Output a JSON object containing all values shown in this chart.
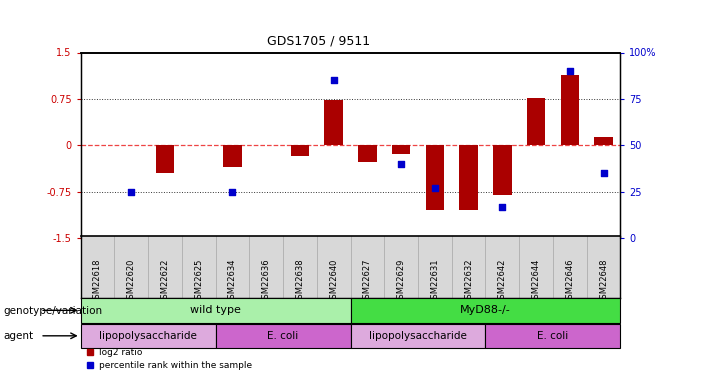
{
  "title": "GDS1705 / 9511",
  "samples": [
    "GSM22618",
    "GSM22620",
    "GSM22622",
    "GSM22625",
    "GSM22634",
    "GSM22636",
    "GSM22638",
    "GSM22640",
    "GSM22627",
    "GSM22629",
    "GSM22631",
    "GSM22632",
    "GSM22642",
    "GSM22644",
    "GSM22646",
    "GSM22648"
  ],
  "log2_ratio": [
    0.0,
    0.0,
    -0.45,
    0.0,
    -0.35,
    0.0,
    -0.18,
    0.74,
    -0.27,
    -0.14,
    -1.05,
    -1.05,
    -0.8,
    0.77,
    1.13,
    0.14
  ],
  "percentile_values": [
    null,
    25,
    null,
    null,
    25,
    null,
    null,
    85,
    null,
    40,
    27,
    null,
    17,
    null,
    90,
    35
  ],
  "ylim_left": [
    -1.5,
    1.5
  ],
  "yticks_left": [
    -1.5,
    -0.75,
    0,
    0.75,
    1.5
  ],
  "ytick_labels_left": [
    "-1.5",
    "-0.75",
    "0",
    "0.75",
    "1.5"
  ],
  "ytick_labels_right": [
    "0",
    "25",
    "50",
    "75",
    "100%"
  ],
  "genotype_groups": [
    {
      "label": "wild type",
      "start": 0,
      "end": 8,
      "color": "#aaf0aa"
    },
    {
      "label": "MyD88-/-",
      "start": 8,
      "end": 16,
      "color": "#44dd44"
    }
  ],
  "agent_groups": [
    {
      "label": "lipopolysaccharide",
      "start": 0,
      "end": 4,
      "color": "#ddaadd"
    },
    {
      "label": "E. coli",
      "start": 4,
      "end": 8,
      "color": "#cc66cc"
    },
    {
      "label": "lipopolysaccharide",
      "start": 8,
      "end": 12,
      "color": "#ddaadd"
    },
    {
      "label": "E. coli",
      "start": 12,
      "end": 16,
      "color": "#cc66cc"
    }
  ],
  "bar_color": "#aa0000",
  "dot_color": "#0000cc",
  "zero_line_color": "#ee4444",
  "dot_line_color": "#6666ff",
  "grid_color": "#333333",
  "bg_color": "white",
  "title_fontsize": 9,
  "tick_fontsize": 7,
  "label_fontsize": 7.5,
  "sample_fontsize": 6
}
